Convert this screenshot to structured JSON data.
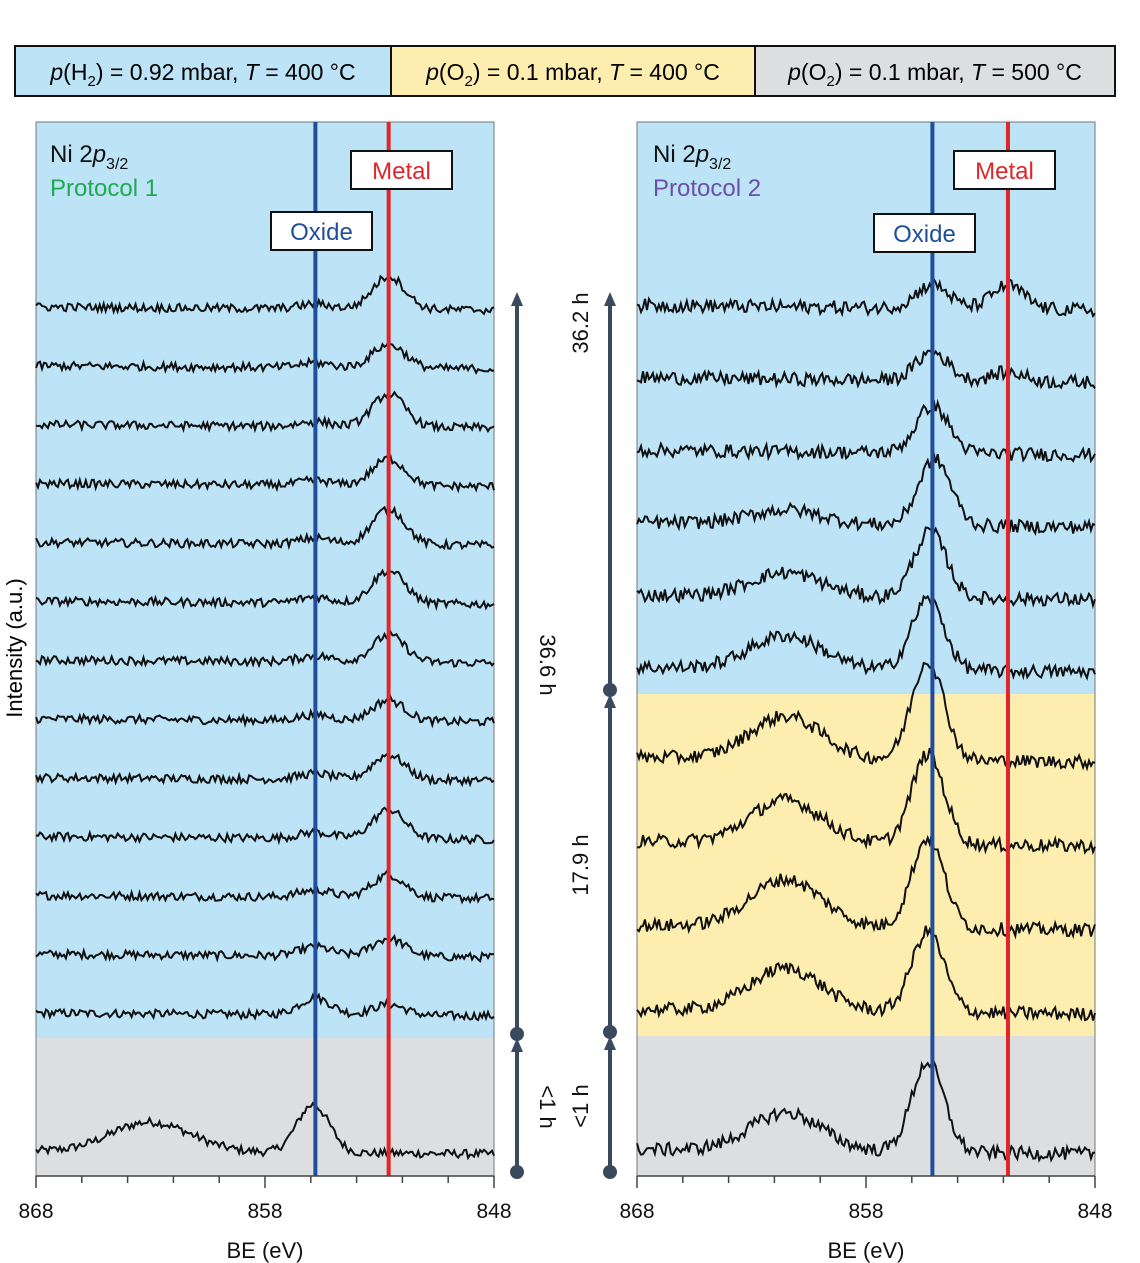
{
  "legend": {
    "items": [
      {
        "param": "p",
        "species": "H",
        "sub": "2",
        "value": " = 0.92 mbar, ",
        "temp": "T",
        "temp_value": " = 400 °C",
        "color": "#bde3f7"
      },
      {
        "param": "p",
        "species": "O",
        "sub": "2",
        "value": " = 0.1 mbar, ",
        "temp": "T",
        "temp_value": " = 400 °C",
        "color": "#fdeeb0"
      },
      {
        "param": "p",
        "species": "O",
        "sub": "2",
        "value": " = 0.1 mbar, ",
        "temp": "T",
        "temp_value": " = 500 °C",
        "color": "#dcdee0"
      }
    ]
  },
  "colors": {
    "h2": "#bde3f7",
    "o2_400": "#fdeeb0",
    "o2_500": "#dcdee0",
    "oxide": "#1f4e9c",
    "metal": "#e0262a",
    "protocol1": "#1faa52",
    "protocol2": "#6b4fa8",
    "arrow": "#3a4a5e"
  },
  "y_axis_label": "Intensity (a.u.)",
  "chart_data": [
    {
      "type": "line",
      "panel": "Protocol 1",
      "title_main": "Ni 2",
      "title_orbital": "p",
      "title_sub": "3/2",
      "protocol_label": "Protocol 1",
      "xlabel": "BE (eV)",
      "xlim": [
        868,
        848
      ],
      "xticks": [
        868,
        858,
        848
      ],
      "oxide": {
        "label": "Oxide",
        "be": 855.8
      },
      "metal": {
        "label": "Metal",
        "be": 852.6
      },
      "segments": [
        {
          "condition": "o2_500",
          "spectra": 1,
          "time_label": "<1 h"
        },
        {
          "condition": "h2",
          "spectra": 13,
          "time_label": "36.6 h"
        }
      ],
      "spectra": [
        {
          "segment": 0,
          "peaks": [
            {
              "be": 855.9,
              "amp": 0.8
            },
            {
              "be": 863.5,
              "amp": 0.35
            },
            {
              "be": 862.0,
              "amp": 0.2
            }
          ]
        },
        {
          "segment": 1,
          "peaks": [
            {
              "be": 855.8,
              "amp": 0.28
            },
            {
              "be": 852.6,
              "amp": 0.18
            }
          ]
        },
        {
          "segment": 1,
          "peaks": [
            {
              "be": 855.8,
              "amp": 0.15
            },
            {
              "be": 852.6,
              "amp": 0.3
            }
          ]
        },
        {
          "segment": 1,
          "peaks": [
            {
              "be": 855.8,
              "amp": 0.12
            },
            {
              "be": 852.6,
              "amp": 0.38
            }
          ]
        },
        {
          "segment": 1,
          "peaks": [
            {
              "be": 855.8,
              "amp": 0.1
            },
            {
              "be": 852.6,
              "amp": 0.48
            }
          ]
        },
        {
          "segment": 1,
          "peaks": [
            {
              "be": 855.8,
              "amp": 0.1
            },
            {
              "be": 852.6,
              "amp": 0.42
            }
          ]
        },
        {
          "segment": 1,
          "peaks": [
            {
              "be": 855.8,
              "amp": 0.1
            },
            {
              "be": 852.6,
              "amp": 0.35
            }
          ]
        },
        {
          "segment": 1,
          "peaks": [
            {
              "be": 855.8,
              "amp": 0.1
            },
            {
              "be": 852.6,
              "amp": 0.45
            }
          ]
        },
        {
          "segment": 1,
          "peaks": [
            {
              "be": 855.8,
              "amp": 0.1
            },
            {
              "be": 852.6,
              "amp": 0.55
            }
          ]
        },
        {
          "segment": 1,
          "peaks": [
            {
              "be": 855.8,
              "amp": 0.1
            },
            {
              "be": 852.6,
              "amp": 0.6
            }
          ]
        },
        {
          "segment": 1,
          "peaks": [
            {
              "be": 855.8,
              "amp": 0.08
            },
            {
              "be": 852.6,
              "amp": 0.45
            }
          ]
        },
        {
          "segment": 1,
          "peaks": [
            {
              "be": 855.8,
              "amp": 0.08
            },
            {
              "be": 852.6,
              "amp": 0.55
            }
          ]
        },
        {
          "segment": 1,
          "peaks": [
            {
              "be": 855.8,
              "amp": 0.08
            },
            {
              "be": 852.6,
              "amp": 0.4
            }
          ]
        },
        {
          "segment": 1,
          "peaks": [
            {
              "be": 855.8,
              "amp": 0.08
            },
            {
              "be": 852.6,
              "amp": 0.55
            }
          ]
        }
      ]
    },
    {
      "type": "line",
      "panel": "Protocol 2",
      "title_main": "Ni 2",
      "title_orbital": "p",
      "title_sub": "3/2",
      "protocol_label": "Protocol 2",
      "xlabel": "BE (eV)",
      "xlim": [
        868,
        848
      ],
      "xticks": [
        868,
        858,
        848
      ],
      "oxide": {
        "label": "Oxide",
        "be": 855.1
      },
      "metal": {
        "label": "Metal",
        "be": 851.8
      },
      "segments": [
        {
          "condition": "o2_500",
          "spectra": 1,
          "time_label": "<1 h"
        },
        {
          "condition": "o2_400",
          "spectra": 4,
          "time_label": "17.9 h"
        },
        {
          "condition": "h2",
          "spectra": 6,
          "time_label": "36.2 h"
        }
      ],
      "spectra": [
        {
          "segment": 0,
          "peaks": [
            {
              "be": 855.3,
              "amp": 0.95
            },
            {
              "be": 861.5,
              "amp": 0.4
            }
          ]
        },
        {
          "segment": 1,
          "peaks": [
            {
              "be": 855.3,
              "amp": 0.85
            },
            {
              "be": 861.5,
              "amp": 0.45
            }
          ]
        },
        {
          "segment": 1,
          "peaks": [
            {
              "be": 855.3,
              "amp": 0.95
            },
            {
              "be": 861.5,
              "amp": 0.5
            }
          ]
        },
        {
          "segment": 1,
          "peaks": [
            {
              "be": 855.3,
              "amp": 0.95
            },
            {
              "be": 861.5,
              "amp": 0.45
            }
          ]
        },
        {
          "segment": 1,
          "peaks": [
            {
              "be": 855.3,
              "amp": 1.05
            },
            {
              "be": 861.5,
              "amp": 0.45
            }
          ]
        },
        {
          "segment": 2,
          "peaks": [
            {
              "be": 855.3,
              "amp": 0.75
            },
            {
              "be": 861.5,
              "amp": 0.35
            }
          ]
        },
        {
          "segment": 2,
          "peaks": [
            {
              "be": 855.2,
              "amp": 0.7
            },
            {
              "be": 861.5,
              "amp": 0.25
            }
          ]
        },
        {
          "segment": 2,
          "peaks": [
            {
              "be": 855.0,
              "amp": 0.7
            },
            {
              "be": 861.5,
              "amp": 0.15
            }
          ]
        },
        {
          "segment": 2,
          "peaks": [
            {
              "be": 855.1,
              "amp": 0.5
            }
          ]
        },
        {
          "segment": 2,
          "peaks": [
            {
              "be": 855.1,
              "amp": 0.3
            },
            {
              "be": 851.8,
              "amp": 0.1
            }
          ]
        },
        {
          "segment": 2,
          "peaks": [
            {
              "be": 855.1,
              "amp": 0.25
            },
            {
              "be": 851.8,
              "amp": 0.25
            }
          ]
        }
      ]
    }
  ]
}
